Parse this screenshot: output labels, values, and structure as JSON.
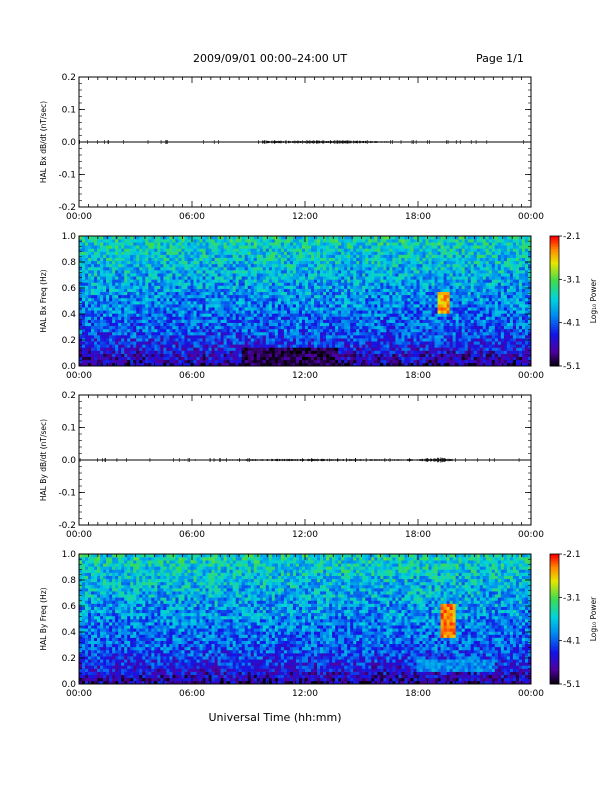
{
  "header": {
    "title": "2009/09/01   00:00–24:00 UT",
    "page": "Page 1/1"
  },
  "xaxis": {
    "label": "Universal Time (hh:mm)",
    "ticks": [
      "00:00",
      "06:00",
      "12:00",
      "18:00",
      "00:00"
    ]
  },
  "colorbar": {
    "label": "Log₁₀ Power",
    "ticks": [
      "-2.1",
      "-3.1",
      "-4.1",
      "-5.1"
    ]
  },
  "chart_data": [
    {
      "type": "line",
      "ylabel": "HAL Bx dB/dt (nT/sec)",
      "ylim": [
        -0.2,
        0.2
      ],
      "yticks": [
        "0.2",
        "0.1",
        "0.0",
        "-0.1",
        "-0.2"
      ],
      "x_range_hours": [
        0,
        24
      ],
      "note": "Near-zero trace; slightly larger fluctuation 09:00–16:00",
      "x_hours": [
        0,
        3,
        6,
        9,
        10,
        12,
        14,
        16,
        18,
        21,
        24
      ],
      "values": [
        0.0,
        0.0,
        0.0,
        0.0,
        0.003,
        0.004,
        0.004,
        0.002,
        0.0,
        0.0,
        0.0
      ]
    },
    {
      "type": "heatmap",
      "ylabel": "HAL Bx Freq (Hz)",
      "ylim": [
        0.0,
        1.0
      ],
      "yticks": [
        "1.0",
        "0.8",
        "0.6",
        "0.4",
        "0.2",
        "0.0"
      ],
      "x_range_hours": [
        0,
        24
      ],
      "clim": [
        -5.1,
        -2.1
      ],
      "features": [
        {
          "t_start_hours": 19.1,
          "t_end_hours": 19.6,
          "f_low_hz": 0.4,
          "f_high_hz": 0.58,
          "log_power": -2.5
        },
        {
          "t_start_hours": 8.7,
          "t_end_hours": 13.8,
          "f_low_hz": 0.0,
          "f_high_hz": 0.15,
          "log_power": -4.9
        }
      ]
    },
    {
      "type": "line",
      "ylabel": "HAL By dB/dt (nT/sec)",
      "ylim": [
        -0.2,
        0.2
      ],
      "yticks": [
        "0.2",
        "0.1",
        "0.0",
        "-0.1",
        "-0.2"
      ],
      "x_range_hours": [
        0,
        24
      ],
      "note": "Near-zero trace; small burst near 19:00",
      "x_hours": [
        0,
        3,
        6,
        9,
        12,
        15,
        18,
        19.2,
        20,
        24
      ],
      "values": [
        0.0,
        0.0,
        0.001,
        0.002,
        0.003,
        0.002,
        0.002,
        0.006,
        0.001,
        0.0
      ]
    },
    {
      "type": "heatmap",
      "ylabel": "HAL By Freq (Hz)",
      "ylim": [
        0.0,
        1.0
      ],
      "yticks": [
        "1.0",
        "0.8",
        "0.6",
        "0.4",
        "0.2",
        "0.0"
      ],
      "x_range_hours": [
        0,
        24
      ],
      "clim": [
        -5.1,
        -2.1
      ],
      "features": [
        {
          "t_start_hours": 19.2,
          "t_end_hours": 20.0,
          "f_low_hz": 0.35,
          "f_high_hz": 0.62,
          "log_power": -2.4
        },
        {
          "t_start_hours": 18.0,
          "t_end_hours": 22.0,
          "f_low_hz": 0.1,
          "f_high_hz": 0.2,
          "log_power": -3.9
        }
      ]
    }
  ],
  "colors": {
    "low": "#000000",
    "mid_low": "#1010e0",
    "mid": "#00c8e0",
    "mid_high": "#40e040",
    "high": "#ff0000"
  }
}
